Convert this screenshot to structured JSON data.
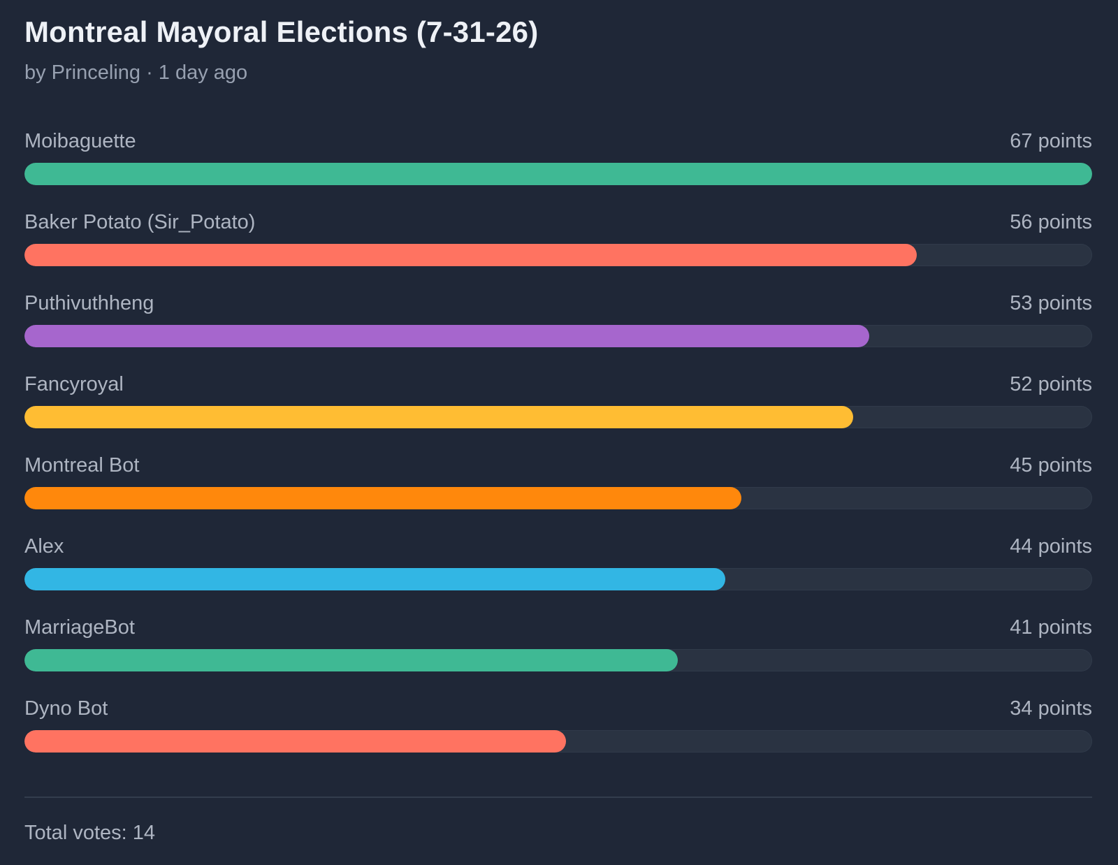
{
  "poll": {
    "title": "Montreal Mayoral Elections (7-31-26)",
    "byline": "by Princeling · 1 day ago",
    "total_votes_label": "Total votes: 14",
    "options": [
      {
        "name": "Moibaguette",
        "points_label": "67 points",
        "points": 67,
        "color": "#3fb994"
      },
      {
        "name": "Baker Potato (Sir_Potato)",
        "points_label": "56 points",
        "points": 56,
        "color": "#ff7361"
      },
      {
        "name": "Puthivuthheng",
        "points_label": "53 points",
        "points": 53,
        "color": "#a666cd"
      },
      {
        "name": "Fancyroyal",
        "points_label": "52 points",
        "points": 52,
        "color": "#ffbd33"
      },
      {
        "name": "Montreal Bot",
        "points_label": "45 points",
        "points": 45,
        "color": "#ff880c"
      },
      {
        "name": "Alex",
        "points_label": "44 points",
        "points": 44,
        "color": "#32b6e4"
      },
      {
        "name": "MarriageBot",
        "points_label": "41 points",
        "points": 41,
        "color": "#3fb994"
      },
      {
        "name": "Dyno Bot",
        "points_label": "34 points",
        "points": 34,
        "color": "#ff7361"
      }
    ]
  }
}
